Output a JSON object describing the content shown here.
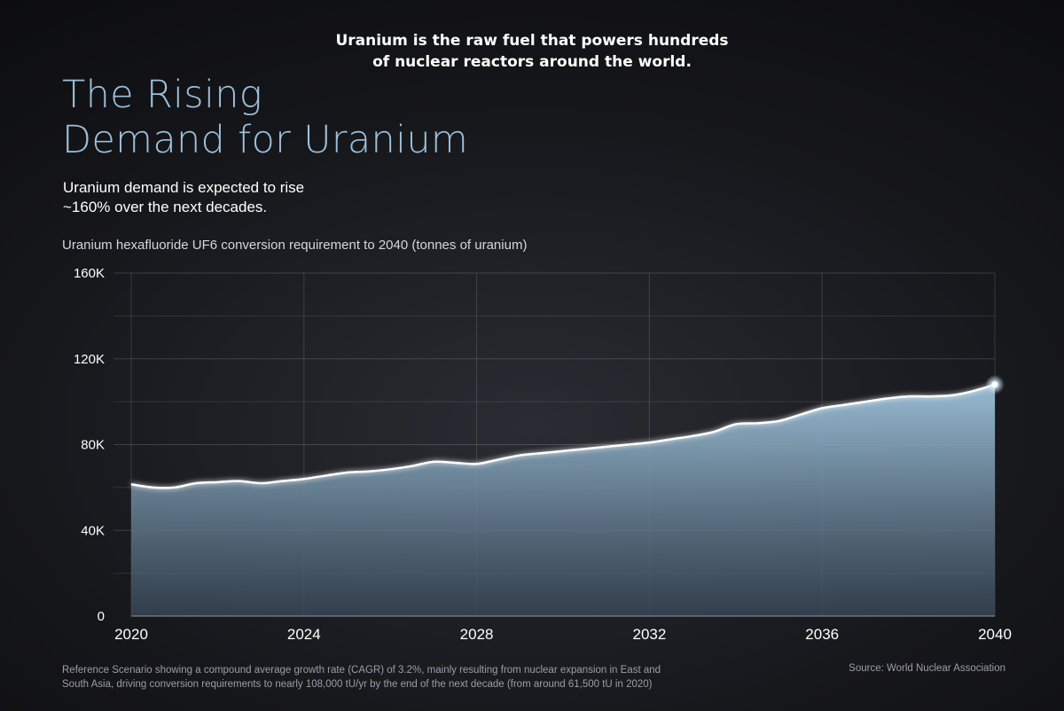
{
  "intro": {
    "line1": "Uranium is the raw fuel that powers hundreds",
    "line2": "of nuclear reactors around the world."
  },
  "title": {
    "line1": "The Rising",
    "line2": "Demand for Uranium"
  },
  "subtitle": {
    "line1": "Uranium demand is expected to rise",
    "line2": "~160% over the next decades."
  },
  "chart_caption": "Uranium hexafluoride UF6 conversion requirement to 2040 (tonnes of uranium)",
  "footnote": {
    "line1": "Reference Scenario showing a compound average growth rate (CAGR) of 3.2%, mainly resulting from nuclear expansion in East and",
    "line2": "South Asia, driving conversion requirements to nearly 108,000 tU/yr by the end of the next decade (from around 61,500 tU in 2020)"
  },
  "source": "Source: World Nuclear Association",
  "colors": {
    "area_top": "#9ec3dc",
    "area_bottom": "#3a4a5a",
    "line": "#ffffff",
    "title": "#9cc0dc"
  },
  "chart_data": {
    "type": "area",
    "title": "Uranium hexafluoride UF6 conversion requirement to 2040 (tonnes of uranium)",
    "xlabel": "",
    "ylabel": "",
    "xlim": [
      2020,
      2040
    ],
    "ylim": [
      0,
      160000
    ],
    "x_ticks": [
      2020,
      2024,
      2028,
      2032,
      2036,
      2040
    ],
    "y_ticks": [
      0,
      40000,
      80000,
      120000,
      160000
    ],
    "y_tick_labels": [
      "0",
      "40K",
      "80K",
      "120K",
      "160K"
    ],
    "grid": true,
    "series": [
      {
        "x": [
          2020,
          2020.5,
          2021,
          2021.5,
          2022,
          2022.5,
          2023,
          2023.5,
          2024,
          2024.5,
          2025,
          2025.5,
          2026,
          2026.5,
          2027,
          2027.5,
          2028,
          2028.5,
          2029,
          2029.5,
          2030,
          2030.5,
          2031,
          2031.5,
          2032,
          2032.5,
          2033,
          2033.5,
          2034,
          2034.5,
          2035,
          2035.5,
          2036,
          2036.5,
          2037,
          2037.5,
          2038,
          2038.5,
          2039,
          2039.5,
          2040
        ],
        "values": [
          61500,
          60000,
          60000,
          62000,
          62500,
          63000,
          62000,
          63000,
          64000,
          65500,
          67000,
          67500,
          68500,
          70000,
          72000,
          71500,
          71000,
          73000,
          75000,
          76000,
          77000,
          78000,
          79000,
          80000,
          81000,
          82500,
          84000,
          86000,
          89500,
          90000,
          91000,
          94000,
          97000,
          98500,
          100000,
          101500,
          102500,
          102500,
          103000,
          105000,
          108000
        ]
      }
    ]
  }
}
